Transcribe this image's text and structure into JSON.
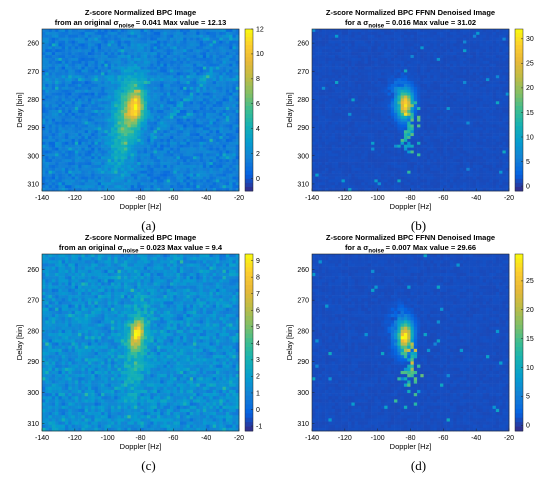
{
  "figure": {
    "panels": [
      {
        "caption": "(a)",
        "title_line1": "Z-score Normalized BPC Image",
        "title_line2_pre": "from an original σ",
        "title_line2_sub": "noise",
        "title_line2_post": "= 0.041 Max value = 12.13",
        "colorbar_ticks": [
          0,
          2,
          4,
          6,
          8,
          10,
          12
        ]
      },
      {
        "caption": "(b)",
        "title_line1": "Z-score Normalized BPC FFNN Denoised Image",
        "title_line2_pre": "for a σ",
        "title_line2_sub": "noise",
        "title_line2_post": "= 0.016 Max value = 31.02",
        "colorbar_ticks": [
          0,
          5,
          10,
          15,
          20,
          25,
          30
        ]
      },
      {
        "caption": "(c)",
        "title_line1": "Z-score Normalized BPC Image",
        "title_line2_pre": "from an original σ",
        "title_line2_sub": "noise",
        "title_line2_post": "= 0.023 Max value = 9.4",
        "colorbar_ticks": [
          -1,
          0,
          1,
          2,
          3,
          4,
          5,
          6,
          7,
          8,
          9
        ]
      },
      {
        "caption": "(d)",
        "title_line1": "Z-score Normalized BPC FFNN Denoised Image",
        "title_line2_pre": "for a σ",
        "title_line2_sub": "noise",
        "title_line2_post": "= 0.007 Max value = 29.66",
        "colorbar_ticks": [
          0,
          5,
          10,
          15,
          20,
          25
        ]
      }
    ]
  },
  "chart_data": [
    {
      "type": "heatmap",
      "title": "Z-score Normalized BPC Image from an original σnoise = 0.041 Max value = 12.13",
      "xlabel": "Doppler [Hz]",
      "ylabel": "Delay [bin]",
      "xlim": [
        -140,
        -20
      ],
      "ylim": [
        310,
        260
      ],
      "xticks": [
        -140,
        -120,
        -100,
        -80,
        -60,
        -40,
        -20
      ],
      "yticks": [
        260,
        270,
        280,
        290,
        300,
        310
      ],
      "colorbar_range": [
        -1,
        12
      ],
      "max_value": 12.13,
      "colormap": "parula"
    },
    {
      "type": "heatmap",
      "title": "Z-score Normalized BPC FFNN Denoised Image for a σnoise = 0.016 Max value = 31.02",
      "xlabel": "Doppler [Hz]",
      "ylabel": "Delay [bin]",
      "xlim": [
        -140,
        -20
      ],
      "ylim": [
        310,
        260
      ],
      "xticks": [
        -140,
        -120,
        -100,
        -80,
        -60,
        -40,
        -20
      ],
      "yticks": [
        260,
        270,
        280,
        290,
        300,
        310
      ],
      "colorbar_range": [
        -1,
        32
      ],
      "max_value": 31.02,
      "colormap": "parula"
    },
    {
      "type": "heatmap",
      "title": "Z-score Normalized BPC Image from an original σnoise = 0.023 Max value = 9.4",
      "xlabel": "Doppler [Hz]",
      "ylabel": "Delay [bin]",
      "xlim": [
        -140,
        -20
      ],
      "ylim": [
        310,
        260
      ],
      "xticks": [
        -140,
        -120,
        -100,
        -80,
        -60,
        -40,
        -20
      ],
      "yticks": [
        260,
        270,
        280,
        290,
        300,
        310
      ],
      "colorbar_range": [
        -1.3,
        9.4
      ],
      "max_value": 9.4,
      "colormap": "parula"
    },
    {
      "type": "heatmap",
      "title": "Z-score Normalized BPC FFNN Denoised Image for a σnoise = 0.007 Max value = 29.66",
      "xlabel": "Doppler [Hz]",
      "ylabel": "Delay [bin]",
      "xlim": [
        -140,
        -20
      ],
      "ylim": [
        310,
        260
      ],
      "xticks": [
        -140,
        -120,
        -100,
        -80,
        -60,
        -40,
        -20
      ],
      "yticks": [
        260,
        270,
        280,
        290,
        300,
        310
      ],
      "colorbar_range": [
        -1,
        29.66
      ],
      "max_value": 29.66,
      "colormap": "parula"
    }
  ]
}
